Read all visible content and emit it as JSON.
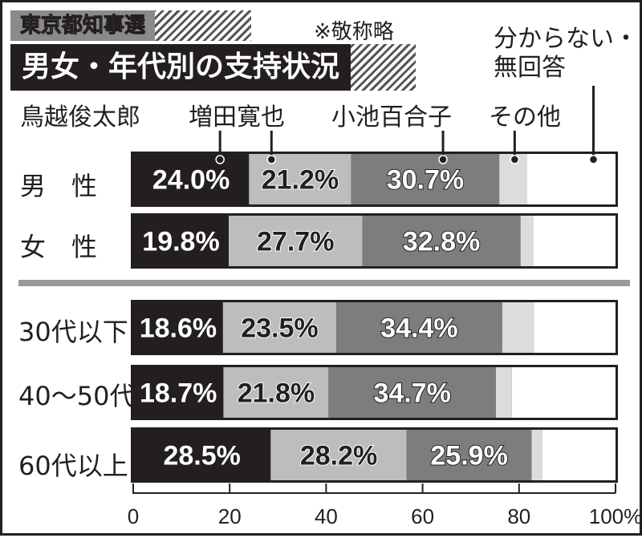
{
  "header": {
    "title": "東京都知事選",
    "subtitle": "男女・年代別の支持状況",
    "note": "※敬称略"
  },
  "legend": {
    "tori": "鳥越俊太郎",
    "masuda": "増田寛也",
    "koike": "小池百合子",
    "other": "その他",
    "unknown_line1": "分からない・",
    "unknown_line2": "無回答"
  },
  "colors": {
    "tori": "#231f20",
    "masuda": "#bdbdbd",
    "koike": "#7d7d7d",
    "other": "#dcdcdc",
    "unknown": "#ffffff"
  },
  "chart_data": {
    "type": "bar",
    "stacked": true,
    "orientation": "horizontal",
    "title": "男女・年代別の支持状況",
    "xlim": [
      0,
      100
    ],
    "x_ticks": [
      "0",
      "20",
      "40",
      "60",
      "80",
      "100%"
    ],
    "categories": [
      "男　性",
      "女　性",
      "30代以下",
      "40～50代",
      "60代以上"
    ],
    "series": [
      {
        "name": "鳥越俊太郎",
        "values": [
          24.0,
          19.8,
          18.6,
          18.7,
          28.5
        ],
        "labels": [
          "24.0%",
          "19.8%",
          "18.6%",
          "18.7%",
          "28.5%"
        ]
      },
      {
        "name": "増田寛也",
        "values": [
          21.2,
          27.7,
          23.5,
          21.8,
          28.2
        ],
        "labels": [
          "21.2%",
          "27.7%",
          "23.5%",
          "21.8%",
          "28.2%"
        ]
      },
      {
        "name": "小池百合子",
        "values": [
          30.7,
          32.8,
          34.4,
          34.7,
          25.9
        ],
        "labels": [
          "30.7%",
          "32.8%",
          "34.4%",
          "34.7%",
          "25.9%"
        ]
      },
      {
        "name": "その他",
        "values": [
          5.8,
          2.6,
          6.6,
          3.3,
          2.2
        ]
      },
      {
        "name": "分からない・無回答",
        "values": [
          18.3,
          17.1,
          16.9,
          21.5,
          15.2
        ]
      }
    ]
  }
}
